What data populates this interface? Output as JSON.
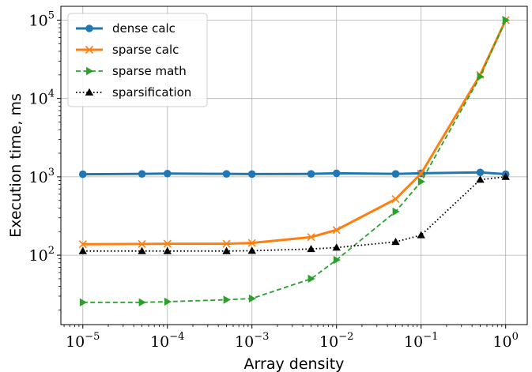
{
  "chart_data": {
    "type": "line",
    "xlabel": "Array density",
    "ylabel": "Execution time, ms",
    "xscale": "log",
    "yscale": "log",
    "xlim": [
      5.5e-06,
      1.8
    ],
    "ylim": [
      13,
      150000
    ],
    "grid": true,
    "legend_position": "upper-left",
    "x_ticks": [
      {
        "value": 1e-05,
        "base": "10",
        "exp": "−5"
      },
      {
        "value": 0.0001,
        "base": "10",
        "exp": "−4"
      },
      {
        "value": 0.001,
        "base": "10",
        "exp": "−3"
      },
      {
        "value": 0.01,
        "base": "10",
        "exp": "−2"
      },
      {
        "value": 0.1,
        "base": "10",
        "exp": "−1"
      },
      {
        "value": 1,
        "base": "10",
        "exp": "0"
      }
    ],
    "y_ticks": [
      {
        "value": 100,
        "base": "10",
        "exp": "2"
      },
      {
        "value": 1000,
        "base": "10",
        "exp": "3"
      },
      {
        "value": 10000,
        "base": "10",
        "exp": "4"
      },
      {
        "value": 100000,
        "base": "10",
        "exp": "5"
      }
    ],
    "x": [
      1e-05,
      5e-05,
      0.0001,
      0.0005,
      0.001,
      0.005,
      0.01,
      0.05,
      0.1,
      0.5,
      1
    ],
    "series": [
      {
        "name": "dense calc",
        "color": "#1f77b4",
        "marker": "circle",
        "linestyle": "solid",
        "linewidth": 3,
        "values": [
          1080,
          1090,
          1100,
          1090,
          1085,
          1090,
          1110,
          1090,
          1110,
          1140,
          1080
        ]
      },
      {
        "name": "sparse calc",
        "color": "#ff7f0e",
        "marker": "x",
        "linestyle": "solid",
        "linewidth": 3,
        "values": [
          138,
          139,
          140,
          140,
          143,
          170,
          210,
          520,
          1100,
          20000,
          100000
        ]
      },
      {
        "name": "sparse math",
        "color": "#2ca02c",
        "marker": "triangle-right",
        "linestyle": "dashed",
        "linewidth": 1.8,
        "values": [
          25,
          25,
          25.5,
          27,
          28,
          50,
          87,
          360,
          870,
          19000,
          100000
        ]
      },
      {
        "name": "sparsification",
        "color": "#000000",
        "marker": "triangle-up",
        "linestyle": "dotted",
        "linewidth": 1.8,
        "values": [
          113,
          113,
          113,
          113,
          114,
          120,
          125,
          148,
          180,
          920,
          1000
        ]
      }
    ]
  }
}
